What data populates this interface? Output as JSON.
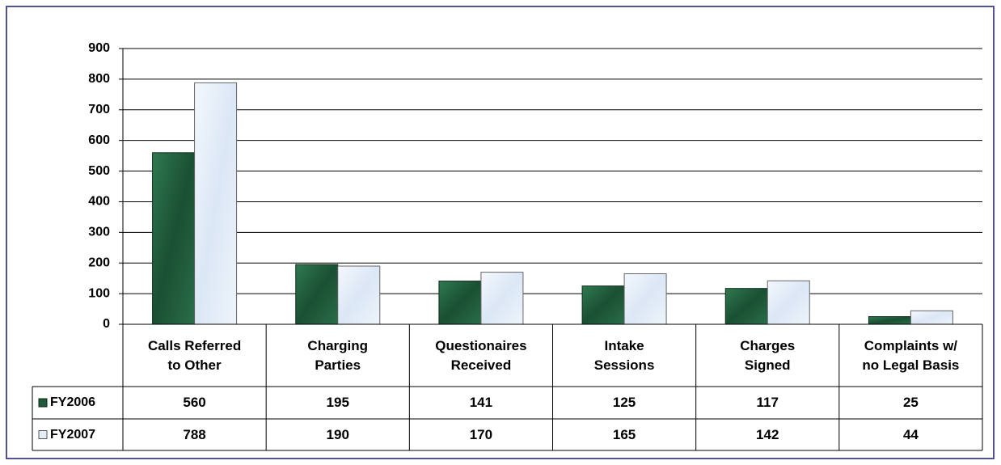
{
  "chart_data": {
    "type": "bar",
    "categories": [
      "Calls Referred\nto Other",
      "Charging\nParties",
      "Questionaires\nReceived",
      "Intake\nSessions",
      "Charges\nSigned",
      "Complaints w/\nno Legal Basis"
    ],
    "series": [
      {
        "name": "FY2006",
        "color": "#1f5b3a",
        "values": [
          560,
          195,
          141,
          125,
          117,
          25
        ]
      },
      {
        "name": "FY2007",
        "color": "#e4edf8",
        "values": [
          788,
          190,
          170,
          165,
          142,
          44
        ]
      }
    ],
    "ylim": [
      0,
      900
    ],
    "yticks": [
      0,
      100,
      200,
      300,
      400,
      500,
      600,
      700,
      800,
      900
    ],
    "grid": true,
    "data_table": true
  }
}
